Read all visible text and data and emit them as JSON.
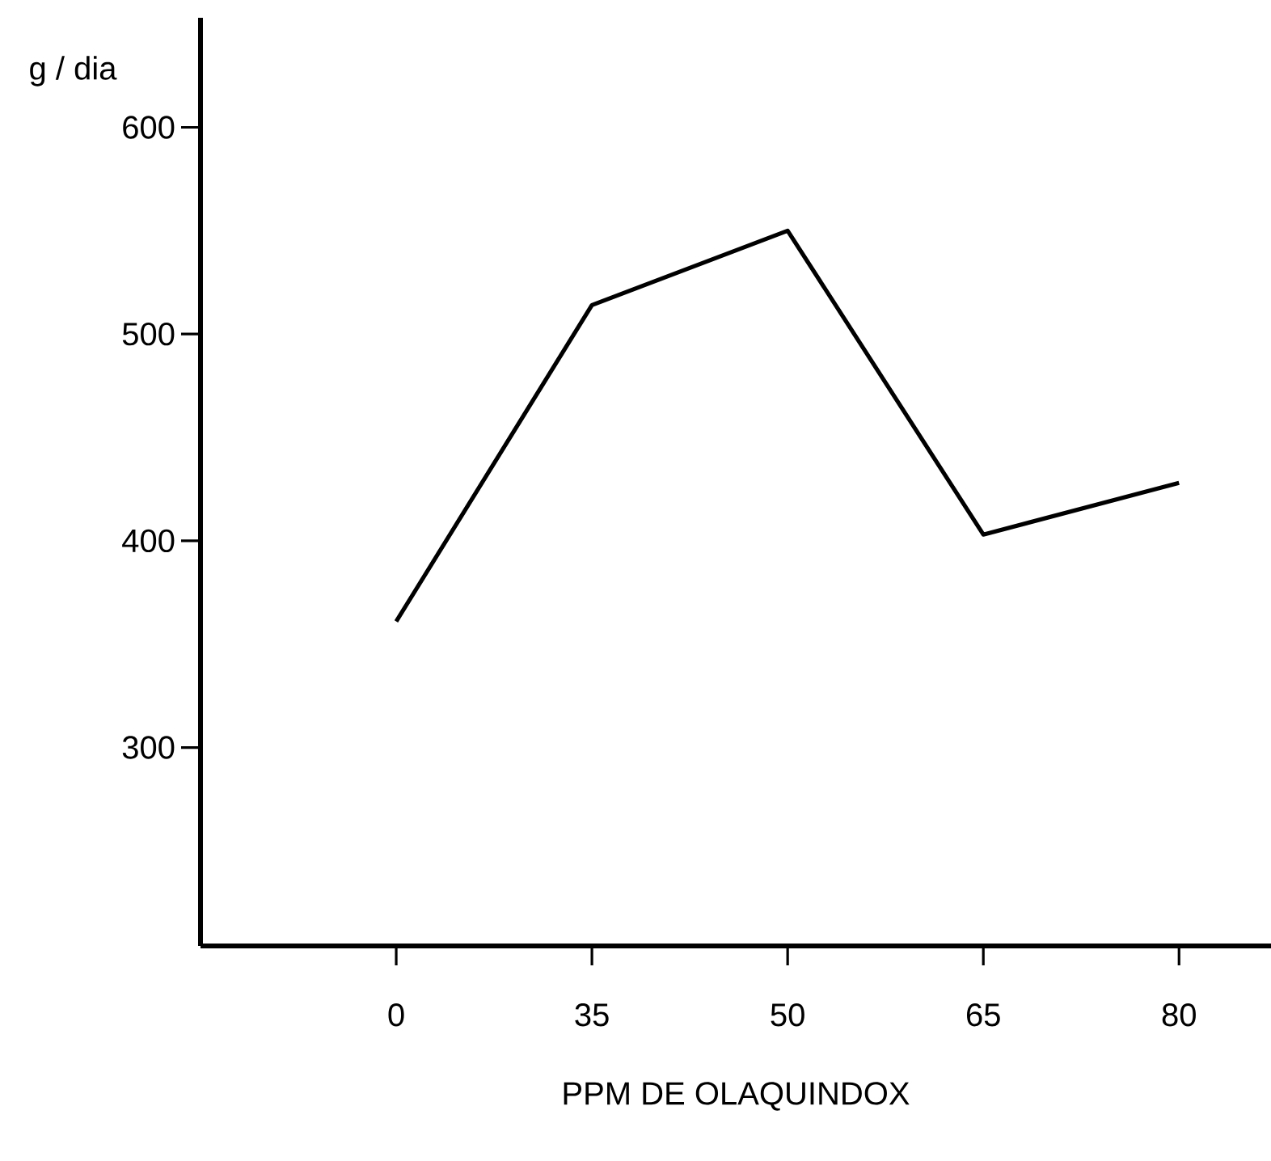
{
  "chart_data": {
    "type": "line",
    "xlabel": "PPM DE OLAQUINDOX",
    "ylabel": "g / dia",
    "categories": [
      "0",
      "35",
      "50",
      "65",
      "80"
    ],
    "series": [
      {
        "color": "#000000",
        "values": [
          361,
          514,
          550,
          403,
          428
        ]
      }
    ],
    "ylim": [
      204,
      653
    ],
    "yticks": [
      300,
      400,
      500,
      600
    ],
    "grid": false,
    "marker": "none",
    "line_style": "solid"
  }
}
